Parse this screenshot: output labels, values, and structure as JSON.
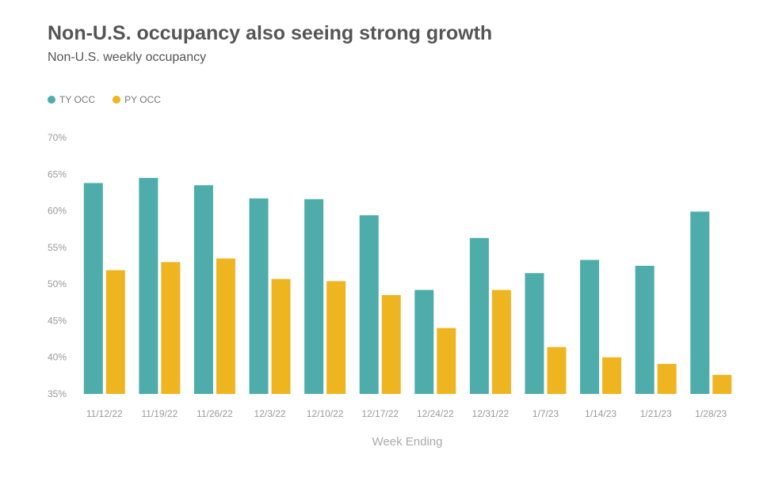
{
  "chart_data": {
    "type": "bar",
    "title": "Non-U.S. occupancy also seeing strong growth",
    "subtitle": "Non-U.S. weekly occupancy",
    "xlabel": "Week Ending",
    "ylabel": "",
    "ylim": [
      35,
      70
    ],
    "yticks": [
      "70%",
      "65%",
      "60%",
      "55%",
      "50%",
      "45%",
      "40%",
      "35%"
    ],
    "ytick_values": [
      70,
      65,
      60,
      55,
      50,
      45,
      40,
      35
    ],
    "grid": false,
    "legend_position": "top-left",
    "categories": [
      "11/12/22",
      "11/19/22",
      "11/26/22",
      "12/3/22",
      "12/10/22",
      "12/17/22",
      "12/24/22",
      "12/31/22",
      "1/7/23",
      "1/14/23",
      "1/21/23",
      "1/28/23"
    ],
    "series": [
      {
        "name": "TY OCC",
        "color": "#4ead ab",
        "values": [
          63.8,
          64.5,
          63.5,
          61.7,
          61.6,
          59.4,
          49.2,
          56.3,
          51.5,
          53.3,
          52.5,
          59.9
        ]
      },
      {
        "name": "PY OCC",
        "color": "#efb521",
        "values": [
          51.9,
          53.0,
          53.5,
          50.7,
          50.4,
          48.5,
          44.0,
          49.2,
          41.4,
          40.0,
          39.1,
          37.6
        ]
      }
    ]
  }
}
